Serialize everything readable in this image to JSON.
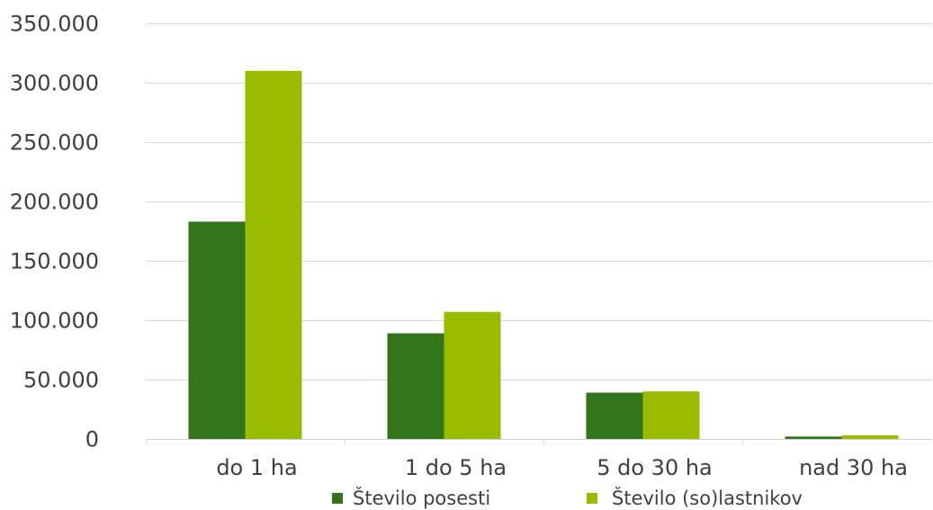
{
  "chart_data": {
    "type": "bar",
    "categories": [
      "do 1 ha",
      "1 do 5 ha",
      "5 do 30 ha",
      "nad 30 ha"
    ],
    "series": [
      {
        "name": "Število posesti",
        "values": [
          183000,
          89000,
          39000,
          2000
        ],
        "color": "#34741a"
      },
      {
        "name": "Število (so)lastnikov",
        "values": [
          310000,
          107000,
          40000,
          3000
        ],
        "color": "#99bb00"
      }
    ],
    "ylim": [
      0,
      350000
    ],
    "y_ticks": [
      {
        "value": 0,
        "label": "0"
      },
      {
        "value": 50000,
        "label": "50.000"
      },
      {
        "value": 100000,
        "label": "100.000"
      },
      {
        "value": 150000,
        "label": "150.000"
      },
      {
        "value": 200000,
        "label": "200.000"
      },
      {
        "value": 250000,
        "label": "250.000"
      },
      {
        "value": 300000,
        "label": "300.000"
      },
      {
        "value": 350000,
        "label": "350.000"
      }
    ],
    "grid": true,
    "legend": "bottom"
  },
  "colors": {
    "text": "#404040",
    "grid": "#d9d9d9",
    "background": "#ffffff"
  }
}
